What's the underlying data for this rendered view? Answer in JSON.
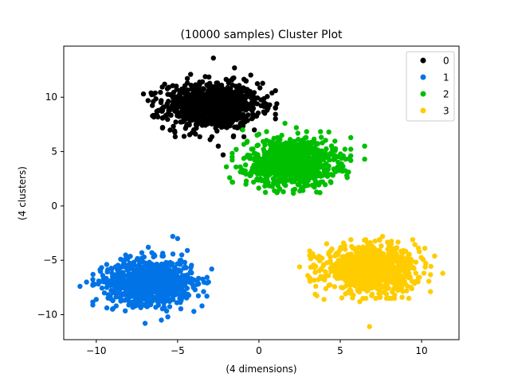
{
  "chart_data": {
    "type": "scatter",
    "title": "(10000 samples) Cluster Plot",
    "xlabel": "(4 dimensions)",
    "ylabel": "(4 clusters)",
    "xlim": [
      -12.0,
      12.3
    ],
    "ylim": [
      -12.3,
      14.7
    ],
    "xticks": [
      {
        "value": -10,
        "label": "−10"
      },
      {
        "value": -5,
        "label": "−5"
      },
      {
        "value": 0,
        "label": "0"
      },
      {
        "value": 5,
        "label": "5"
      },
      {
        "value": 10,
        "label": "10"
      }
    ],
    "yticks": [
      {
        "value": -10,
        "label": "−10"
      },
      {
        "value": -5,
        "label": "−5"
      },
      {
        "value": 0,
        "label": "0"
      },
      {
        "value": 5,
        "label": "5"
      },
      {
        "value": 10,
        "label": "10"
      }
    ],
    "grid": false,
    "legend_position": "top-right",
    "series": [
      {
        "name": "0",
        "color": "#000000",
        "center": [
          -2.9,
          9.2
        ],
        "spread": [
          1.45,
          1.05
        ],
        "x": [
          -7.1,
          -6.5,
          -5.8,
          -5.0,
          -4.2,
          -3.5,
          -2.8,
          -2.0,
          -1.2,
          -0.3,
          0.5,
          1.1,
          -3.0,
          -2.5,
          -4.0,
          -1.5,
          -5.2,
          -0.8,
          -3.8,
          -2.2,
          -6.0,
          0.8,
          -4.6,
          -1.9,
          -3.3
        ],
        "y": [
          10.3,
          9.6,
          11.2,
          8.4,
          12.1,
          9.0,
          13.6,
          10.6,
          7.3,
          9.8,
          8.8,
          9.4,
          6.1,
          5.5,
          7.0,
          12.7,
          10.0,
          11.5,
          8.0,
          4.7,
          8.9,
          10.4,
          6.4,
          7.7,
          11.9
        ]
      },
      {
        "name": "1",
        "color": "#0073e6",
        "center": [
          -6.7,
          -7.0
        ],
        "spread": [
          1.3,
          1.0
        ],
        "x": [
          -11.0,
          -10.6,
          -10.2,
          -9.5,
          -8.8,
          -8.0,
          -7.2,
          -6.4,
          -5.6,
          -4.8,
          -4.0,
          -3.2,
          -3.1,
          -7.0,
          -6.8,
          -5.0,
          -9.0,
          -3.5,
          -8.5,
          -6.0,
          -4.4,
          -7.6,
          -5.3,
          -10.0,
          -2.9
        ],
        "y": [
          -7.4,
          -7.0,
          -6.3,
          -8.0,
          -5.6,
          -9.1,
          -4.3,
          -7.6,
          -10.2,
          -5.0,
          -6.8,
          -8.3,
          -7.0,
          -10.8,
          -3.8,
          -3.0,
          -9.5,
          -9.2,
          -4.9,
          -10.5,
          -4.1,
          -8.7,
          -2.8,
          -8.6,
          -5.8
        ]
      },
      {
        "name": "2",
        "color": "#00bf00",
        "center": [
          2.0,
          4.0
        ],
        "spread": [
          1.35,
          1.05
        ],
        "x": [
          -2.0,
          -1.4,
          -0.8,
          0.0,
          0.8,
          1.5,
          2.3,
          3.1,
          3.9,
          4.7,
          5.4,
          6.5,
          6.5,
          1.6,
          2.6,
          -1.0,
          4.3,
          0.5,
          3.4,
          1.2,
          -1.8,
          5.0,
          2.9,
          -0.2,
          3.8
        ],
        "y": [
          3.6,
          5.2,
          2.0,
          6.6,
          4.2,
          1.3,
          7.2,
          3.0,
          5.8,
          4.6,
          2.8,
          5.5,
          4.3,
          7.6,
          1.5,
          7.0,
          6.8,
          2.5,
          3.4,
          5.0,
          2.6,
          3.7,
          6.3,
          4.8,
          2.2
        ]
      },
      {
        "name": "3",
        "color": "#ffcc00",
        "center": [
          6.9,
          -5.8
        ],
        "spread": [
          1.4,
          1.0
        ],
        "x": [
          2.5,
          3.0,
          3.6,
          4.3,
          5.0,
          5.8,
          6.6,
          7.4,
          8.2,
          9.0,
          9.8,
          10.8,
          11.3,
          6.8,
          7.6,
          5.2,
          8.8,
          4.0,
          10.2,
          6.2,
          4.6,
          9.4,
          7.0,
          3.3,
          8.0
        ],
        "y": [
          -5.6,
          -6.4,
          -4.8,
          -7.3,
          -4.0,
          -8.2,
          -5.3,
          -3.1,
          -7.9,
          -5.0,
          -6.6,
          -4.6,
          -6.2,
          -11.1,
          -2.8,
          -3.4,
          -8.4,
          -8.6,
          -3.9,
          -8.8,
          -6.0,
          -7.6,
          -5.8,
          -4.4,
          -3.6
        ]
      }
    ]
  }
}
